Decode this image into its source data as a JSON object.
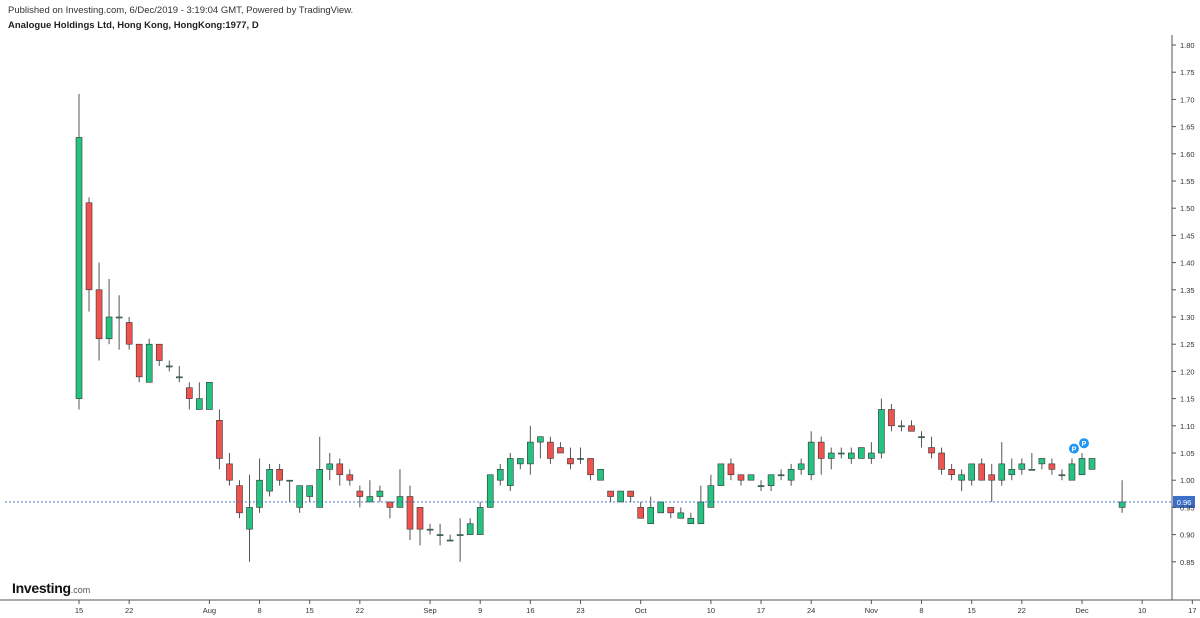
{
  "header": {
    "published": "Published on Investing.com, 6/Dec/2019 - 3:19:04 GMT, Powered by TradingView.",
    "symbol": "Analogue Holdings Ltd, Hong Kong, HongKong:1977, D"
  },
  "logo": {
    "name": "Investing",
    "domain": ".com"
  },
  "colors": {
    "up": "#26c281",
    "down": "#ef5350",
    "wick": "#555555",
    "price_line": "#2f65b0",
    "price_label_bg": "#3d6fc9",
    "marker": "#2196f3"
  },
  "chart_data": {
    "type": "candlestick",
    "ylim": [
      0.8,
      1.8
    ],
    "y_ticks": [
      "0.85",
      "0.90",
      "0.95",
      "1.00",
      "1.05",
      "1.10",
      "1.15",
      "1.20",
      "1.25",
      "1.30",
      "1.35",
      "1.40",
      "1.45",
      "1.50",
      "1.55",
      "1.60",
      "1.65",
      "1.70",
      "1.75",
      "1.80"
    ],
    "x_labels": [
      "15",
      "22",
      "Aug",
      "8",
      "15",
      "22",
      "Sep",
      "9",
      "16",
      "23",
      "Oct",
      "10",
      "17",
      "24",
      "Nov",
      "8",
      "15",
      "22",
      "Dec",
      "10",
      "17"
    ],
    "x_label_positions": [
      "Jul 15",
      "Jul 22",
      "Aug 1",
      "Aug 8",
      "Aug 15",
      "Aug 22",
      "Sep 2",
      "Sep 9",
      "Sep 16",
      "Sep 23",
      "Oct 1",
      "Oct 10",
      "Oct 17",
      "Oct 24",
      "Nov 1",
      "Nov 8",
      "Nov 15",
      "Nov 22",
      "Dec 2",
      "Dec 10",
      "Dec 17"
    ],
    "last_price": "0.96",
    "markers": [
      "P",
      "P"
    ],
    "candles": [
      {
        "d": "Jul 15",
        "o": 1.15,
        "h": 1.71,
        "l": 1.13,
        "c": 1.63
      },
      {
        "d": "Jul 16",
        "o": 1.51,
        "h": 1.52,
        "l": 1.31,
        "c": 1.35
      },
      {
        "d": "Jul 17",
        "o": 1.35,
        "h": 1.4,
        "l": 1.22,
        "c": 1.26
      },
      {
        "d": "Jul 18",
        "o": 1.26,
        "h": 1.37,
        "l": 1.25,
        "c": 1.3
      },
      {
        "d": "Jul 19",
        "o": 1.3,
        "h": 1.34,
        "l": 1.24,
        "c": 1.3
      },
      {
        "d": "Jul 22",
        "o": 1.29,
        "h": 1.3,
        "l": 1.24,
        "c": 1.25
      },
      {
        "d": "Jul 23",
        "o": 1.25,
        "h": 1.25,
        "l": 1.18,
        "c": 1.19
      },
      {
        "d": "Jul 24",
        "o": 1.18,
        "h": 1.26,
        "l": 1.18,
        "c": 1.25
      },
      {
        "d": "Jul 25",
        "o": 1.25,
        "h": 1.25,
        "l": 1.21,
        "c": 1.22
      },
      {
        "d": "Jul 26",
        "o": 1.21,
        "h": 1.22,
        "l": 1.2,
        "c": 1.21
      },
      {
        "d": "Jul 29",
        "o": 1.19,
        "h": 1.21,
        "l": 1.18,
        "c": 1.19
      },
      {
        "d": "Jul 30",
        "o": 1.17,
        "h": 1.18,
        "l": 1.13,
        "c": 1.15
      },
      {
        "d": "Jul 31",
        "o": 1.13,
        "h": 1.18,
        "l": 1.13,
        "c": 1.15
      },
      {
        "d": "Aug 1",
        "o": 1.13,
        "h": 1.18,
        "l": 1.13,
        "c": 1.18
      },
      {
        "d": "Aug 2",
        "o": 1.11,
        "h": 1.13,
        "l": 1.02,
        "c": 1.04
      },
      {
        "d": "Aug 5",
        "o": 1.03,
        "h": 1.05,
        "l": 0.99,
        "c": 1.0
      },
      {
        "d": "Aug 6",
        "o": 0.99,
        "h": 1.0,
        "l": 0.93,
        "c": 0.94
      },
      {
        "d": "Aug 7",
        "o": 0.91,
        "h": 1.01,
        "l": 0.85,
        "c": 0.95
      },
      {
        "d": "Aug 8",
        "o": 0.95,
        "h": 1.04,
        "l": 0.94,
        "c": 1.0
      },
      {
        "d": "Aug 9",
        "o": 0.98,
        "h": 1.03,
        "l": 0.97,
        "c": 1.02
      },
      {
        "d": "Aug 12",
        "o": 1.02,
        "h": 1.03,
        "l": 0.99,
        "c": 1.0
      },
      {
        "d": "Aug 13",
        "o": 1.0,
        "h": 1.0,
        "l": 0.96,
        "c": 1.0
      },
      {
        "d": "Aug 14",
        "o": 0.95,
        "h": 0.99,
        "l": 0.94,
        "c": 0.99
      },
      {
        "d": "Aug 15",
        "o": 0.97,
        "h": 0.99,
        "l": 0.96,
        "c": 0.99
      },
      {
        "d": "Aug 16",
        "o": 0.95,
        "h": 1.08,
        "l": 0.95,
        "c": 1.02
      },
      {
        "d": "Aug 19",
        "o": 1.02,
        "h": 1.05,
        "l": 1.0,
        "c": 1.03
      },
      {
        "d": "Aug 20",
        "o": 1.03,
        "h": 1.04,
        "l": 0.99,
        "c": 1.01
      },
      {
        "d": "Aug 21",
        "o": 1.01,
        "h": 1.02,
        "l": 0.99,
        "c": 1.0
      },
      {
        "d": "Aug 22",
        "o": 0.98,
        "h": 0.99,
        "l": 0.95,
        "c": 0.97
      },
      {
        "d": "Aug 23",
        "o": 0.96,
        "h": 1.0,
        "l": 0.96,
        "c": 0.97
      },
      {
        "d": "Aug 26",
        "o": 0.97,
        "h": 0.99,
        "l": 0.96,
        "c": 0.98
      },
      {
        "d": "Aug 27",
        "o": 0.96,
        "h": 0.96,
        "l": 0.93,
        "c": 0.95
      },
      {
        "d": "Aug 28",
        "o": 0.95,
        "h": 1.02,
        "l": 0.95,
        "c": 0.97
      },
      {
        "d": "Aug 29",
        "o": 0.97,
        "h": 0.99,
        "l": 0.89,
        "c": 0.91
      },
      {
        "d": "Aug 30",
        "o": 0.95,
        "h": 0.95,
        "l": 0.88,
        "c": 0.91
      },
      {
        "d": "Sep 2",
        "o": 0.91,
        "h": 0.92,
        "l": 0.9,
        "c": 0.91
      },
      {
        "d": "Sep 3",
        "o": 0.9,
        "h": 0.92,
        "l": 0.88,
        "c": 0.9
      },
      {
        "d": "Sep 4",
        "o": 0.89,
        "h": 0.9,
        "l": 0.89,
        "c": 0.89
      },
      {
        "d": "Sep 5",
        "o": 0.9,
        "h": 0.93,
        "l": 0.85,
        "c": 0.9
      },
      {
        "d": "Sep 6",
        "o": 0.9,
        "h": 0.93,
        "l": 0.9,
        "c": 0.92
      },
      {
        "d": "Sep 9",
        "o": 0.9,
        "h": 0.96,
        "l": 0.9,
        "c": 0.95
      },
      {
        "d": "Sep 10",
        "o": 0.95,
        "h": 1.01,
        "l": 0.95,
        "c": 1.01
      },
      {
        "d": "Sep 11",
        "o": 1.0,
        "h": 1.03,
        "l": 0.99,
        "c": 1.02
      },
      {
        "d": "Sep 12",
        "o": 0.99,
        "h": 1.05,
        "l": 0.98,
        "c": 1.04
      },
      {
        "d": "Sep 13",
        "o": 1.03,
        "h": 1.04,
        "l": 1.02,
        "c": 1.04
      },
      {
        "d": "Sep 16",
        "o": 1.03,
        "h": 1.1,
        "l": 1.01,
        "c": 1.07
      },
      {
        "d": "Sep 17",
        "o": 1.07,
        "h": 1.08,
        "l": 1.04,
        "c": 1.08
      },
      {
        "d": "Sep 18",
        "o": 1.07,
        "h": 1.08,
        "l": 1.03,
        "c": 1.04
      },
      {
        "d": "Sep 19",
        "o": 1.06,
        "h": 1.07,
        "l": 1.05,
        "c": 1.05
      },
      {
        "d": "Sep 20",
        "o": 1.04,
        "h": 1.06,
        "l": 1.02,
        "c": 1.03
      },
      {
        "d": "Sep 23",
        "o": 1.04,
        "h": 1.06,
        "l": 1.03,
        "c": 1.04
      },
      {
        "d": "Sep 24",
        "o": 1.04,
        "h": 1.04,
        "l": 1.0,
        "c": 1.01
      },
      {
        "d": "Sep 25",
        "o": 1.0,
        "h": 1.02,
        "l": 1.0,
        "c": 1.02
      },
      {
        "d": "Sep 26",
        "o": 0.98,
        "h": 0.98,
        "l": 0.96,
        "c": 0.97
      },
      {
        "d": "Sep 27",
        "o": 0.96,
        "h": 0.98,
        "l": 0.96,
        "c": 0.98
      },
      {
        "d": "Sep 30",
        "o": 0.98,
        "h": 0.98,
        "l": 0.96,
        "c": 0.97
      },
      {
        "d": "Oct 1",
        "o": 0.95,
        "h": 0.96,
        "l": 0.93,
        "c": 0.93
      },
      {
        "d": "Oct 2",
        "o": 0.92,
        "h": 0.97,
        "l": 0.92,
        "c": 0.95
      },
      {
        "d": "Oct 3",
        "o": 0.94,
        "h": 0.96,
        "l": 0.94,
        "c": 0.96
      },
      {
        "d": "Oct 4",
        "o": 0.95,
        "h": 0.95,
        "l": 0.93,
        "c": 0.94
      },
      {
        "d": "Oct 7",
        "o": 0.93,
        "h": 0.95,
        "l": 0.93,
        "c": 0.94
      },
      {
        "d": "Oct 8",
        "o": 0.92,
        "h": 0.94,
        "l": 0.92,
        "c": 0.93
      },
      {
        "d": "Oct 9",
        "o": 0.92,
        "h": 0.99,
        "l": 0.92,
        "c": 0.96
      },
      {
        "d": "Oct 10",
        "o": 0.95,
        "h": 1.01,
        "l": 0.95,
        "c": 0.99
      },
      {
        "d": "Oct 11",
        "o": 0.99,
        "h": 1.03,
        "l": 0.99,
        "c": 1.03
      },
      {
        "d": "Oct 14",
        "o": 1.03,
        "h": 1.04,
        "l": 1.0,
        "c": 1.01
      },
      {
        "d": "Oct 15",
        "o": 1.01,
        "h": 1.01,
        "l": 0.99,
        "c": 1.0
      },
      {
        "d": "Oct 16",
        "o": 1.0,
        "h": 1.01,
        "l": 1.0,
        "c": 1.01
      },
      {
        "d": "Oct 17",
        "o": 0.99,
        "h": 1.0,
        "l": 0.98,
        "c": 0.99
      },
      {
        "d": "Oct 18",
        "o": 0.99,
        "h": 1.01,
        "l": 0.98,
        "c": 1.01
      },
      {
        "d": "Oct 21",
        "o": 1.01,
        "h": 1.02,
        "l": 1.0,
        "c": 1.01
      },
      {
        "d": "Oct 22",
        "o": 1.0,
        "h": 1.03,
        "l": 0.99,
        "c": 1.02
      },
      {
        "d": "Oct 23",
        "o": 1.02,
        "h": 1.04,
        "l": 1.01,
        "c": 1.03
      },
      {
        "d": "Oct 24",
        "o": 1.01,
        "h": 1.09,
        "l": 1.0,
        "c": 1.07
      },
      {
        "d": "Oct 25",
        "o": 1.07,
        "h": 1.08,
        "l": 1.01,
        "c": 1.04
      },
      {
        "d": "Oct 28",
        "o": 1.04,
        "h": 1.06,
        "l": 1.02,
        "c": 1.05
      },
      {
        "d": "Oct 29",
        "o": 1.05,
        "h": 1.06,
        "l": 1.04,
        "c": 1.05
      },
      {
        "d": "Oct 30",
        "o": 1.04,
        "h": 1.06,
        "l": 1.03,
        "c": 1.05
      },
      {
        "d": "Oct 31",
        "o": 1.04,
        "h": 1.06,
        "l": 1.04,
        "c": 1.06
      },
      {
        "d": "Nov 1",
        "o": 1.04,
        "h": 1.07,
        "l": 1.03,
        "c": 1.05
      },
      {
        "d": "Nov 4",
        "o": 1.05,
        "h": 1.15,
        "l": 1.04,
        "c": 1.13
      },
      {
        "d": "Nov 5",
        "o": 1.13,
        "h": 1.14,
        "l": 1.09,
        "c": 1.1
      },
      {
        "d": "Nov 6",
        "o": 1.1,
        "h": 1.11,
        "l": 1.09,
        "c": 1.1
      },
      {
        "d": "Nov 7",
        "o": 1.1,
        "h": 1.11,
        "l": 1.09,
        "c": 1.09
      },
      {
        "d": "Nov 8",
        "o": 1.08,
        "h": 1.09,
        "l": 1.06,
        "c": 1.08
      },
      {
        "d": "Nov 11",
        "o": 1.06,
        "h": 1.08,
        "l": 1.04,
        "c": 1.05
      },
      {
        "d": "Nov 12",
        "o": 1.05,
        "h": 1.06,
        "l": 1.01,
        "c": 1.02
      },
      {
        "d": "Nov 13",
        "o": 1.02,
        "h": 1.03,
        "l": 1.0,
        "c": 1.01
      },
      {
        "d": "Nov 14",
        "o": 1.0,
        "h": 1.02,
        "l": 0.98,
        "c": 1.01
      },
      {
        "d": "Nov 15",
        "o": 1.0,
        "h": 1.03,
        "l": 0.99,
        "c": 1.03
      },
      {
        "d": "Nov 18",
        "o": 1.03,
        "h": 1.04,
        "l": 1.0,
        "c": 1.0
      },
      {
        "d": "Nov 19",
        "o": 1.01,
        "h": 1.03,
        "l": 0.96,
        "c": 1.0
      },
      {
        "d": "Nov 20",
        "o": 1.0,
        "h": 1.07,
        "l": 0.99,
        "c": 1.03
      },
      {
        "d": "Nov 21",
        "o": 1.01,
        "h": 1.04,
        "l": 1.0,
        "c": 1.02
      },
      {
        "d": "Nov 22",
        "o": 1.02,
        "h": 1.04,
        "l": 1.01,
        "c": 1.03
      },
      {
        "d": "Nov 25",
        "o": 1.02,
        "h": 1.05,
        "l": 1.02,
        "c": 1.02
      },
      {
        "d": "Nov 26",
        "o": 1.03,
        "h": 1.04,
        "l": 1.02,
        "c": 1.04
      },
      {
        "d": "Nov 27",
        "o": 1.03,
        "h": 1.04,
        "l": 1.01,
        "c": 1.02
      },
      {
        "d": "Nov 28",
        "o": 1.01,
        "h": 1.02,
        "l": 1.0,
        "c": 1.01
      },
      {
        "d": "Nov 29",
        "o": 1.0,
        "h": 1.04,
        "l": 1.0,
        "c": 1.03
      },
      {
        "d": "Dec 2",
        "o": 1.01,
        "h": 1.05,
        "l": 1.01,
        "c": 1.04
      },
      {
        "d": "Dec 3",
        "o": 1.02,
        "h": 1.04,
        "l": 1.02,
        "c": 1.04
      },
      {
        "d": "Dec 6",
        "o": 0.95,
        "h": 1.0,
        "l": 0.94,
        "c": 0.96
      }
    ]
  }
}
